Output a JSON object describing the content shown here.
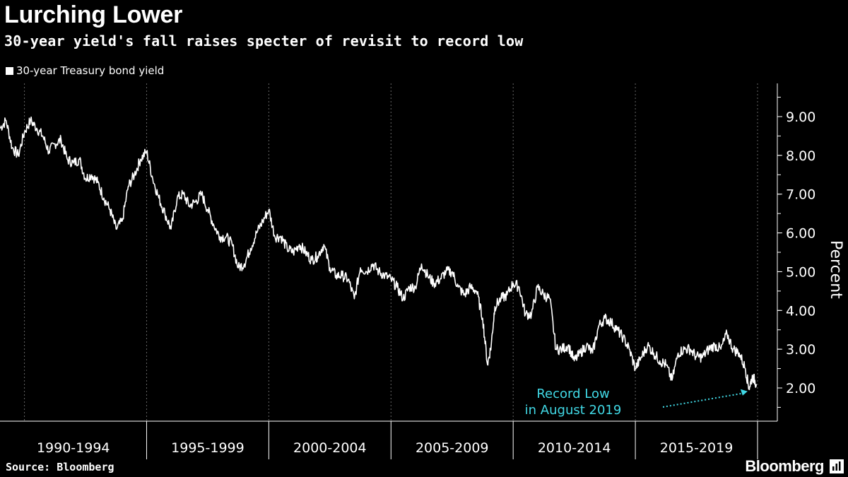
{
  "header": {
    "title": "Lurching Lower",
    "subtitle": "30-year yield's fall raises specter of revisit to record low"
  },
  "legend": {
    "label": "30-year Treasury bond yield"
  },
  "footer": {
    "source": "Source: Bloomberg",
    "brand": "Bloomberg"
  },
  "chart_data": {
    "type": "line",
    "title": "Lurching Lower",
    "subtitle": "30-year yield's fall raises specter of revisit to record low",
    "xlabel": "",
    "ylabel": "Percent",
    "x_categories": [
      "1990-1994",
      "1995-1999",
      "2000-2004",
      "2005-2009",
      "2010-2014",
      "2015-2019"
    ],
    "xlim": [
      1989.0,
      2020.0
    ],
    "ylim": [
      1.5,
      9.8
    ],
    "y_ticks": [
      2.0,
      3.0,
      4.0,
      5.0,
      6.0,
      7.0,
      8.0,
      9.0
    ],
    "y_tick_labels": [
      "2.00",
      "3.00",
      "4.00",
      "5.00",
      "6.00",
      "7.00",
      "8.00",
      "9.00"
    ],
    "grid": true,
    "legend_position": "top-left",
    "colors": {
      "line": "#ffffff",
      "annotation": "#41d9e6",
      "background": "#000000",
      "grid": "#666666"
    },
    "series": [
      {
        "name": "30-year Treasury bond yield",
        "x": [
          1989.0,
          1989.25,
          1989.5,
          1989.75,
          1990.0,
          1990.25,
          1990.5,
          1990.75,
          1991.0,
          1991.25,
          1991.5,
          1991.75,
          1992.0,
          1992.25,
          1992.5,
          1992.75,
          1993.0,
          1993.25,
          1993.5,
          1993.75,
          1994.0,
          1994.25,
          1994.5,
          1994.75,
          1995.0,
          1995.25,
          1995.5,
          1995.75,
          1996.0,
          1996.25,
          1996.5,
          1996.75,
          1997.0,
          1997.25,
          1997.5,
          1997.75,
          1998.0,
          1998.25,
          1998.5,
          1998.75,
          1999.0,
          1999.25,
          1999.5,
          1999.75,
          2000.0,
          2000.25,
          2000.5,
          2000.75,
          2001.0,
          2001.25,
          2001.5,
          2001.75,
          2002.0,
          2002.25,
          2002.5,
          2002.75,
          2003.0,
          2003.25,
          2003.5,
          2003.75,
          2004.0,
          2004.25,
          2004.5,
          2004.75,
          2005.0,
          2005.25,
          2005.5,
          2005.75,
          2006.0,
          2006.25,
          2006.5,
          2006.75,
          2007.0,
          2007.25,
          2007.5,
          2007.75,
          2008.0,
          2008.25,
          2008.5,
          2008.75,
          2008.95,
          2009.1,
          2009.25,
          2009.5,
          2009.75,
          2010.0,
          2010.25,
          2010.5,
          2010.75,
          2011.0,
          2011.25,
          2011.5,
          2011.75,
          2012.0,
          2012.25,
          2012.5,
          2012.75,
          2013.0,
          2013.25,
          2013.5,
          2013.75,
          2014.0,
          2014.25,
          2014.5,
          2014.75,
          2015.0,
          2015.25,
          2015.5,
          2015.75,
          2016.0,
          2016.25,
          2016.5,
          2016.75,
          2017.0,
          2017.25,
          2017.5,
          2017.75,
          2018.0,
          2018.25,
          2018.5,
          2018.75,
          2019.0,
          2019.25,
          2019.5,
          2019.65,
          2019.8,
          2019.95
        ],
        "values": [
          8.7,
          8.9,
          8.2,
          8.0,
          8.6,
          8.9,
          8.7,
          8.5,
          8.1,
          8.3,
          8.4,
          7.9,
          7.8,
          7.9,
          7.4,
          7.5,
          7.3,
          6.9,
          6.6,
          6.1,
          6.3,
          7.2,
          7.5,
          7.9,
          8.1,
          7.4,
          6.9,
          6.5,
          6.1,
          6.9,
          7.0,
          6.7,
          6.8,
          7.0,
          6.6,
          6.2,
          5.9,
          5.9,
          5.7,
          5.1,
          5.2,
          5.6,
          6.0,
          6.3,
          6.6,
          5.9,
          5.9,
          5.6,
          5.5,
          5.7,
          5.5,
          5.3,
          5.4,
          5.7,
          5.1,
          4.9,
          4.9,
          4.8,
          4.3,
          5.1,
          5.0,
          5.2,
          5.0,
          4.9,
          4.8,
          4.6,
          4.3,
          4.6,
          4.6,
          5.2,
          4.9,
          4.7,
          4.8,
          5.0,
          5.0,
          4.6,
          4.4,
          4.6,
          4.5,
          3.8,
          2.6,
          3.1,
          4.1,
          4.3,
          4.4,
          4.7,
          4.6,
          3.9,
          3.9,
          4.6,
          4.4,
          4.3,
          3.0,
          3.0,
          3.1,
          2.7,
          2.9,
          3.1,
          2.9,
          3.6,
          3.8,
          3.7,
          3.5,
          3.3,
          3.0,
          2.5,
          2.8,
          3.1,
          2.9,
          2.7,
          2.6,
          2.2,
          2.9,
          3.0,
          3.0,
          2.8,
          2.8,
          3.0,
          3.1,
          3.0,
          3.4,
          3.0,
          2.9,
          2.5,
          2.0,
          2.3,
          2.1
        ]
      }
    ],
    "annotations": [
      {
        "text_line1": "Record Low",
        "text_line2": "in August 2019",
        "point": {
          "x": 2019.65,
          "y": 1.95
        }
      }
    ]
  }
}
